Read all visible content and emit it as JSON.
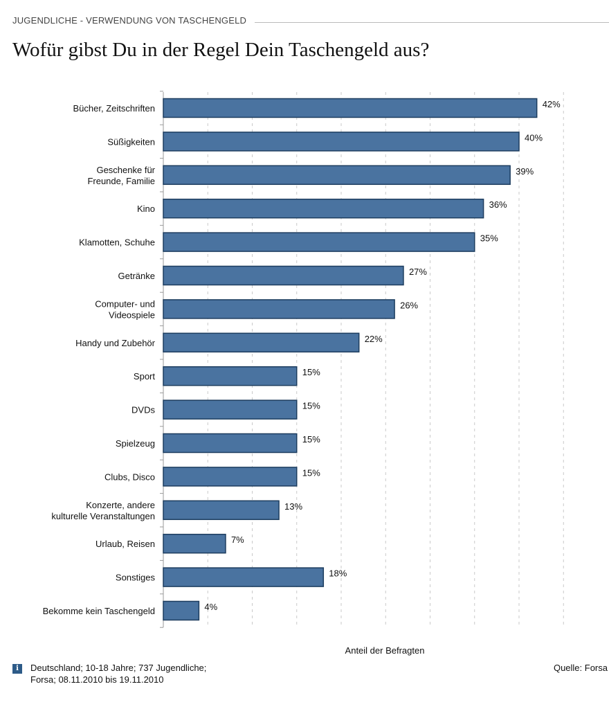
{
  "header": {
    "kicker": "JUGENDLICHE - VERWENDUNG VON TASCHENGELD",
    "title": "Wofür gibst Du in der Regel Dein Taschengeld aus?"
  },
  "chart_data": {
    "type": "bar",
    "orientation": "horizontal",
    "categories": [
      [
        "Bücher, Zeitschriften"
      ],
      [
        "Süßigkeiten"
      ],
      [
        "Geschenke für",
        "Freunde, Familie"
      ],
      [
        "Kino"
      ],
      [
        "Klamotten, Schuhe"
      ],
      [
        "Getränke"
      ],
      [
        "Computer- und",
        "Videospiele"
      ],
      [
        "Handy und Zubehör"
      ],
      [
        "Sport"
      ],
      [
        "DVDs"
      ],
      [
        "Spielzeug"
      ],
      [
        "Clubs, Disco"
      ],
      [
        "Konzerte, andere",
        "kulturelle Veranstaltungen"
      ],
      [
        "Urlaub, Reisen"
      ],
      [
        "Sonstiges"
      ],
      [
        "Bekomme kein Taschengeld"
      ]
    ],
    "values": [
      42,
      40,
      39,
      36,
      35,
      27,
      26,
      22,
      15,
      15,
      15,
      15,
      13,
      7,
      18,
      4
    ],
    "value_labels": [
      "42%",
      "40%",
      "39%",
      "36%",
      "35%",
      "27%",
      "26%",
      "22%",
      "15%",
      "15%",
      "15%",
      "15%",
      "13%",
      "7%",
      "18%",
      "4%"
    ],
    "xlabel": "Anteil der Befragten",
    "xlim": [
      0,
      50
    ],
    "grid": true,
    "bar_color": "#4a73a0",
    "bar_border": "#1d3d5f"
  },
  "footer": {
    "note_line1": "Deutschland; 10-18 Jahre; 737 Jugendliche;",
    "note_line2": "Forsa; 08.11.2010 bis 19.11.2010",
    "source": "Quelle: Forsa",
    "info_icon": "info-icon"
  }
}
